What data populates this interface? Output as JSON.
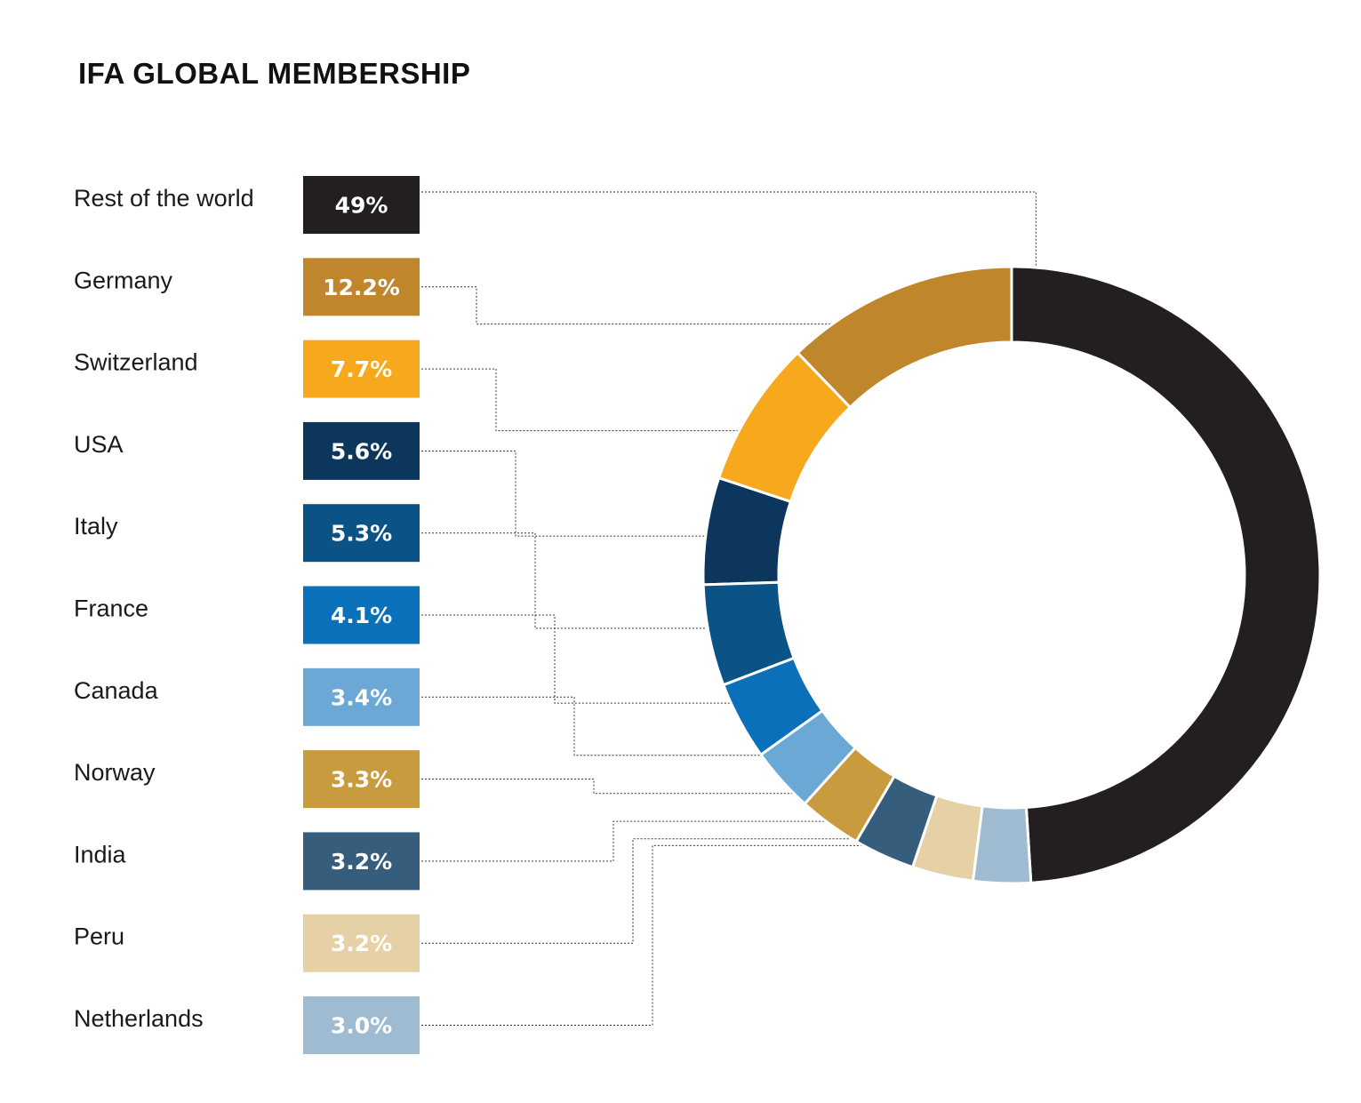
{
  "chart_data": {
    "type": "pie",
    "title": "IFA GLOBAL MEMBERSHIP",
    "categories": [
      "Rest of the world",
      "Germany",
      "Switzerland",
      "USA",
      "Italy",
      "France",
      "Canada",
      "Norway",
      "India",
      "Peru",
      "Netherlands"
    ],
    "values": [
      49,
      12.2,
      7.7,
      5.6,
      5.3,
      4.1,
      3.4,
      3.3,
      3.2,
      3.2,
      3.0
    ],
    "value_labels": [
      "49%",
      "12.2%",
      "7.7%",
      "5.6%",
      "5.3%",
      "4.1%",
      "3.4%",
      "3.3%",
      "3.2%",
      "3.2%",
      "3.0%"
    ],
    "colors": [
      "#231f20",
      "#bf862c",
      "#f7a81d",
      "#0d365c",
      "#0b5286",
      "#0b70ba",
      "#6ba8d5",
      "#c89b3f",
      "#375d7d",
      "#e6d0a5",
      "#9fbbd1"
    ],
    "legend_placement": "left",
    "donut": true
  }
}
